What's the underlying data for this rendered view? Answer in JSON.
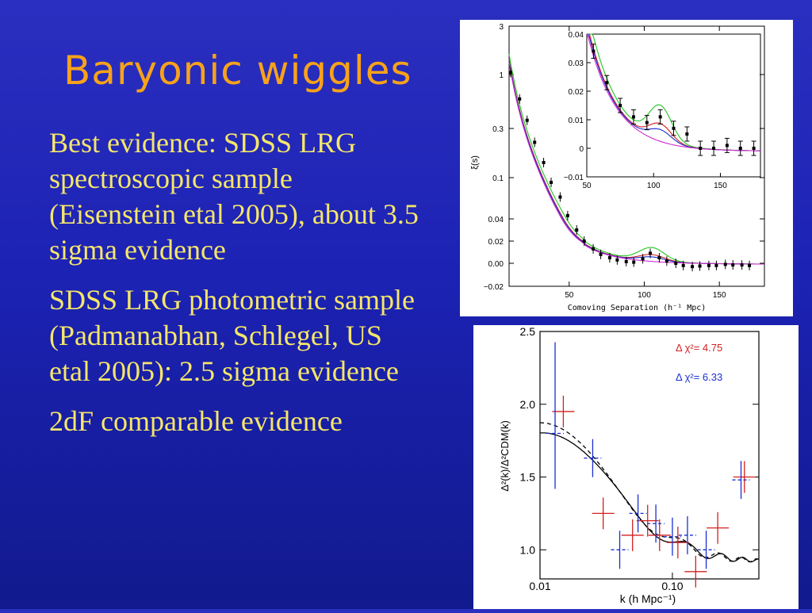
{
  "slide": {
    "title": "Baryonic wiggles",
    "bullets": [
      "Best evidence: SDSS LRG spectroscopic sample (Eisenstein etal 2005), about 3.5 sigma evidence",
      "SDSS LRG photometric sample (Padmanabhan, Schlegel, US etal 2005): 2.5 sigma evidence",
      "2dF comparable evidence"
    ]
  },
  "colors": {
    "title": "#f7a21b",
    "text": "#f5e66a",
    "green": "#22c622",
    "red": "#d42020",
    "blue": "#1a2fd0",
    "magenta": "#d02ad0"
  },
  "chart_data": [
    {
      "type": "scatter",
      "xlabel": "Comoving Separation (h⁻¹ Mpc)",
      "ylabel": "ξ(s)",
      "xlim": [
        10,
        180
      ],
      "x_ticks": [
        "50",
        "100",
        "150"
      ],
      "y_ticks": [
        "3",
        "1",
        "0.3",
        "0.1",
        "0.04",
        "0.02",
        "0.00",
        "−0.02"
      ],
      "data_points": {
        "x": [
          11,
          17,
          22,
          27,
          33,
          38,
          44,
          49,
          55,
          60,
          66,
          71,
          77,
          82,
          88,
          93,
          99,
          104,
          110,
          115,
          121,
          126,
          132,
          137,
          143,
          148,
          154,
          159,
          165,
          170
        ],
        "y": [
          1.05,
          0.58,
          0.36,
          0.22,
          0.14,
          0.09,
          0.065,
          0.043,
          0.03,
          0.02,
          0.013,
          0.008,
          0.005,
          0.003,
          0.0015,
          0.001,
          0.004,
          0.009,
          0.005,
          0.002,
          0.0,
          -0.002,
          -0.003,
          -0.0025,
          -0.002,
          -0.002,
          -0.001,
          -0.0015,
          -0.0015,
          -0.002
        ]
      },
      "inset": {
        "xlim": [
          50,
          180
        ],
        "ylim": [
          -0.01,
          0.04
        ],
        "x_ticks": [
          "50",
          "100",
          "150"
        ],
        "y_ticks": [
          "0.04",
          "0.03",
          "0.02",
          "0.01",
          "0",
          "−0.01"
        ],
        "points": {
          "x": [
            55,
            65,
            75,
            85,
            95,
            105,
            115,
            125,
            135,
            145,
            155,
            165,
            175
          ],
          "y": [
            0.034,
            0.023,
            0.015,
            0.011,
            0.009,
            0.011,
            0.007,
            0.005,
            0.0,
            0.0,
            0.001,
            0.0,
            0.0
          ]
        }
      }
    },
    {
      "type": "line",
      "xlabel": "k (h Mpc⁻¹)",
      "ylabel": "Δ²(k)/Δ²CDM(k)",
      "ylim": [
        0.8,
        2.5
      ],
      "x_ticks": [
        "0.01",
        "0.10"
      ],
      "y_ticks": [
        "2.5",
        "2.0",
        "1.5",
        "1.0"
      ],
      "annotations": [
        "Δ χ²= 4.75",
        "Δ χ²= 6.33"
      ],
      "red_points": {
        "k": [
          0.015,
          0.03,
          0.05,
          0.065,
          0.08,
          0.11,
          0.15,
          0.22,
          0.35
        ],
        "y": [
          1.95,
          1.25,
          1.1,
          1.2,
          1.1,
          1.05,
          0.85,
          1.15,
          1.5
        ]
      },
      "blue_points": {
        "k": [
          0.013,
          0.025,
          0.04,
          0.055,
          0.075,
          0.1,
          0.13,
          0.18,
          0.33
        ],
        "y": [
          1.8,
          1.63,
          1.0,
          1.25,
          1.18,
          1.09,
          1.1,
          1.0,
          1.48
        ]
      }
    }
  ]
}
